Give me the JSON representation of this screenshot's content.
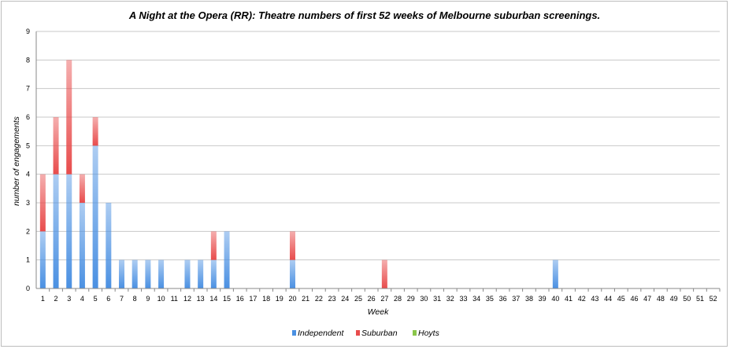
{
  "chart_data": {
    "type": "bar",
    "stacked": true,
    "title": "A Night at the Opera (RR): Theatre numbers of first 52 weeks of Melbourne suburban screenings.",
    "xlabel": "Week",
    "ylabel": "number of engagements",
    "ylim": [
      0,
      9
    ],
    "yticks": [
      0,
      1,
      2,
      3,
      4,
      5,
      6,
      7,
      8,
      9
    ],
    "grid": true,
    "legend_position": "bottom",
    "categories": [
      "1",
      "2",
      "3",
      "4",
      "5",
      "6",
      "7",
      "8",
      "9",
      "10",
      "11",
      "12",
      "13",
      "14",
      "15",
      "16",
      "17",
      "18",
      "19",
      "20",
      "21",
      "22",
      "23",
      "24",
      "25",
      "26",
      "27",
      "28",
      "29",
      "30",
      "31",
      "32",
      "33",
      "34",
      "35",
      "36",
      "37",
      "38",
      "39",
      "40",
      "41",
      "42",
      "43",
      "44",
      "45",
      "46",
      "47",
      "48",
      "49",
      "50",
      "51",
      "52"
    ],
    "series": [
      {
        "name": "Independent",
        "color": "#4a90e2",
        "values": [
          2,
          4,
          4,
          3,
          5,
          3,
          1,
          1,
          1,
          1,
          0,
          1,
          1,
          1,
          2,
          0,
          0,
          0,
          0,
          1,
          0,
          0,
          0,
          0,
          0,
          0,
          0,
          0,
          0,
          0,
          0,
          0,
          0,
          0,
          0,
          0,
          0,
          0,
          0,
          1,
          0,
          0,
          0,
          0,
          0,
          0,
          0,
          0,
          0,
          0,
          0,
          0
        ]
      },
      {
        "name": "Suburban",
        "color": "#e84c4c",
        "values": [
          2,
          2,
          4,
          1,
          1,
          0,
          0,
          0,
          0,
          0,
          0,
          0,
          0,
          1,
          0,
          0,
          0,
          0,
          0,
          1,
          0,
          0,
          0,
          0,
          0,
          0,
          1,
          0,
          0,
          0,
          0,
          0,
          0,
          0,
          0,
          0,
          0,
          0,
          0,
          0,
          0,
          0,
          0,
          0,
          0,
          0,
          0,
          0,
          0,
          0,
          0,
          0
        ]
      },
      {
        "name": "Hoyts",
        "color": "#8ac64a",
        "values": [
          0,
          0,
          0,
          0,
          0,
          0,
          0,
          0,
          0,
          0,
          0,
          0,
          0,
          0,
          0,
          0,
          0,
          0,
          0,
          0,
          0,
          0,
          0,
          0,
          0,
          0,
          0,
          0,
          0,
          0,
          0,
          0,
          0,
          0,
          0,
          0,
          0,
          0,
          0,
          0,
          0,
          0,
          0,
          0,
          0,
          0,
          0,
          0,
          0,
          0,
          0,
          0
        ]
      }
    ]
  }
}
